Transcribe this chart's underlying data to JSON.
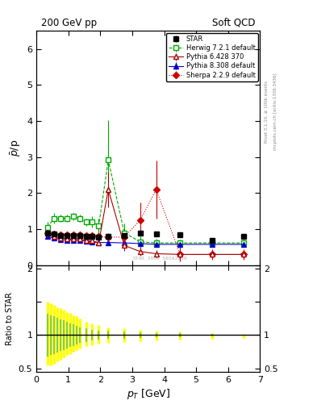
{
  "title_left": "200 GeV pp",
  "title_right": "Soft QCD",
  "ylabel_main": "$\\bar{p}$/p",
  "ylabel_ratio": "Ratio to STAR",
  "xlabel": "$p_T$ [GeV]",
  "right_label_top": "Rivet 3.1.10, ≥ 100k events",
  "right_label_bot": "mcplots.cern.ch [arXiv:1306.3436]",
  "watermark": "STAR_2009_S6592200",
  "star_x": [
    0.35,
    0.55,
    0.75,
    0.95,
    1.15,
    1.35,
    1.55,
    1.75,
    1.95,
    2.25,
    2.75,
    3.25,
    3.75,
    4.5,
    5.5,
    6.5
  ],
  "star_y": [
    0.88,
    0.87,
    0.82,
    0.82,
    0.82,
    0.83,
    0.8,
    0.8,
    0.78,
    0.8,
    0.82,
    0.88,
    0.87,
    0.85,
    0.7,
    0.8
  ],
  "star_yerr": [
    0.03,
    0.02,
    0.02,
    0.02,
    0.02,
    0.02,
    0.02,
    0.02,
    0.02,
    0.02,
    0.02,
    0.03,
    0.03,
    0.04,
    0.05,
    0.06
  ],
  "star_color": "#000000",
  "herwig_x": [
    0.35,
    0.55,
    0.75,
    0.95,
    1.15,
    1.35,
    1.55,
    1.75,
    1.95,
    2.25,
    2.75,
    3.25,
    3.75,
    4.5,
    5.5,
    6.5
  ],
  "herwig_y": [
    1.05,
    1.3,
    1.3,
    1.3,
    1.35,
    1.3,
    1.2,
    1.2,
    1.1,
    2.92,
    0.9,
    0.65,
    0.62,
    0.62,
    0.62,
    0.62
  ],
  "herwig_yerr_up": [
    0.15,
    0.15,
    0.1,
    0.1,
    0.1,
    0.1,
    0.1,
    0.15,
    0.2,
    1.1,
    0.25,
    0.15,
    0.12,
    0.1,
    0.1,
    0.1
  ],
  "herwig_yerr_dn": [
    0.15,
    0.15,
    0.1,
    0.1,
    0.1,
    0.1,
    0.1,
    0.15,
    0.2,
    0.6,
    0.25,
    0.15,
    0.12,
    0.1,
    0.1,
    0.1
  ],
  "herwig_color": "#00aa00",
  "pythia6_x": [
    0.35,
    0.55,
    0.75,
    0.95,
    1.15,
    1.35,
    1.55,
    1.75,
    1.95,
    2.25,
    2.75,
    3.25,
    3.75,
    4.5,
    5.5,
    6.5
  ],
  "pythia6_y": [
    0.88,
    0.8,
    0.75,
    0.73,
    0.73,
    0.73,
    0.7,
    0.68,
    0.62,
    2.1,
    0.55,
    0.38,
    0.32,
    0.3,
    0.3,
    0.3
  ],
  "pythia6_yerr_up": [
    0.1,
    0.08,
    0.05,
    0.05,
    0.05,
    0.05,
    0.05,
    0.05,
    0.05,
    0.5,
    0.15,
    0.12,
    0.1,
    0.08,
    0.08,
    0.08
  ],
  "pythia6_yerr_dn": [
    0.1,
    0.08,
    0.05,
    0.05,
    0.05,
    0.05,
    0.05,
    0.05,
    0.05,
    0.5,
    0.15,
    0.12,
    0.1,
    0.08,
    0.08,
    0.08
  ],
  "pythia6_color": "#cc0000",
  "pythia8_x": [
    0.35,
    0.55,
    0.75,
    0.95,
    1.15,
    1.35,
    1.55,
    1.75,
    1.95,
    2.25,
    2.75,
    3.25,
    3.75,
    4.5,
    5.5,
    6.5
  ],
  "pythia8_y": [
    0.8,
    0.75,
    0.72,
    0.7,
    0.7,
    0.69,
    0.67,
    0.65,
    0.63,
    0.63,
    0.62,
    0.6,
    0.58,
    0.58,
    0.58,
    0.58
  ],
  "pythia8_yerr": [
    0.03,
    0.02,
    0.02,
    0.02,
    0.02,
    0.02,
    0.02,
    0.02,
    0.02,
    0.02,
    0.02,
    0.02,
    0.02,
    0.03,
    0.03,
    0.03
  ],
  "pythia8_color": "#0000cc",
  "sherpa_x": [
    0.35,
    0.55,
    0.75,
    0.95,
    1.15,
    1.35,
    1.55,
    1.75,
    1.95,
    2.25,
    2.75,
    3.25,
    3.75,
    4.5,
    5.5,
    6.5
  ],
  "sherpa_y": [
    0.9,
    0.87,
    0.85,
    0.85,
    0.85,
    0.85,
    0.83,
    0.82,
    0.8,
    0.78,
    0.78,
    1.25,
    2.1,
    0.3,
    0.3,
    0.3
  ],
  "sherpa_yerr_up": [
    0.08,
    0.07,
    0.05,
    0.05,
    0.05,
    0.05,
    0.05,
    0.05,
    0.08,
    0.1,
    0.15,
    0.5,
    0.8,
    0.2,
    0.15,
    0.15
  ],
  "sherpa_yerr_dn": [
    0.08,
    0.07,
    0.05,
    0.05,
    0.05,
    0.05,
    0.05,
    0.05,
    0.08,
    0.1,
    0.15,
    0.3,
    0.8,
    0.2,
    0.15,
    0.15
  ],
  "sherpa_color": "#cc0000",
  "ylim_main": [
    0.0,
    6.5
  ],
  "ylim_ratio": [
    0.45,
    2.05
  ],
  "xlim": [
    0.0,
    7.0
  ],
  "ratio_yellow_x": [
    0.35,
    0.45,
    0.55,
    0.65,
    0.75,
    0.85,
    0.95,
    1.05,
    1.15,
    1.25,
    1.35,
    1.55,
    1.75,
    1.95,
    2.25,
    2.75,
    3.25,
    3.75,
    4.5,
    5.5,
    6.5
  ],
  "ratio_yellow_lo": [
    0.55,
    0.55,
    0.57,
    0.6,
    0.63,
    0.66,
    0.7,
    0.72,
    0.75,
    0.78,
    0.8,
    0.83,
    0.85,
    0.87,
    0.88,
    0.9,
    0.91,
    0.92,
    0.93,
    0.95,
    0.96
  ],
  "ratio_yellow_hi": [
    1.5,
    1.48,
    1.45,
    1.42,
    1.4,
    1.38,
    1.35,
    1.33,
    1.3,
    1.28,
    1.25,
    1.2,
    1.18,
    1.15,
    1.12,
    1.1,
    1.08,
    1.06,
    1.05,
    1.03,
    1.02
  ],
  "ratio_green_x": [
    0.35,
    0.45,
    0.55,
    0.65,
    0.75,
    0.85,
    0.95,
    1.05,
    1.15,
    1.25,
    1.35,
    1.55,
    1.75,
    1.95,
    2.25,
    2.75,
    3.25,
    3.75,
    4.5,
    5.5,
    6.5
  ],
  "ratio_green_lo": [
    0.68,
    0.7,
    0.72,
    0.74,
    0.76,
    0.78,
    0.8,
    0.82,
    0.84,
    0.86,
    0.88,
    0.9,
    0.92,
    0.93,
    0.94,
    0.95,
    0.96,
    0.97,
    0.97,
    0.98,
    0.99
  ],
  "ratio_green_hi": [
    1.32,
    1.3,
    1.28,
    1.26,
    1.24,
    1.22,
    1.2,
    1.18,
    1.16,
    1.14,
    1.12,
    1.1,
    1.08,
    1.07,
    1.06,
    1.05,
    1.04,
    1.03,
    1.03,
    1.02,
    1.01
  ]
}
